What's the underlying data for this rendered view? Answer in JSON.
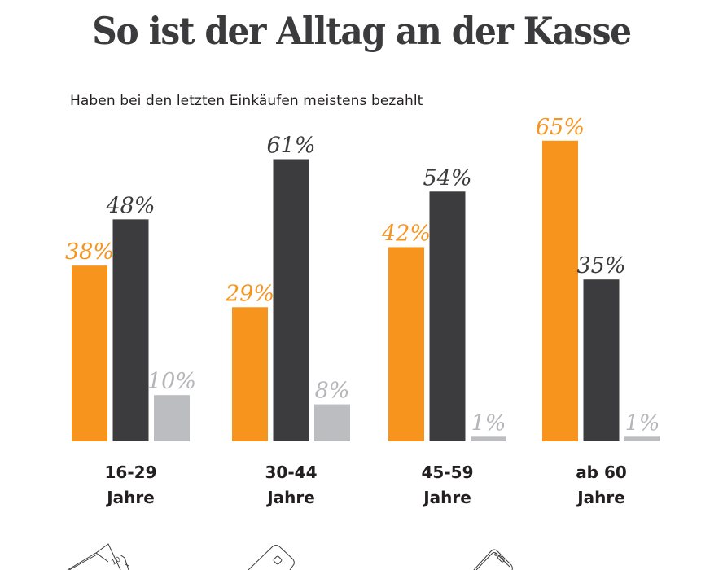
{
  "header": {
    "title": "So ist der Alltag an der Kasse",
    "subtitle": "Haben bei den letzten Einkäufen meistens bezahlt"
  },
  "colors": {
    "title": "#3b3b3d",
    "cash": "#F7941D",
    "card": "#3C3C3E",
    "mobile": "#BCBDC0",
    "mobile_label": "#B5B6BA",
    "category_text": "#231f20"
  },
  "icons": [
    {
      "name": "banknotes-icon",
      "denomination": "10"
    },
    {
      "name": "bank-card-icon"
    },
    {
      "name": "smartphone-icon"
    }
  ],
  "chart_data": {
    "type": "bar",
    "title": "So ist der Alltag an der Kasse",
    "subtitle": "Haben bei den letzten Einkäufen meistens bezahlt",
    "xlabel": "",
    "ylabel": "",
    "ylim": [
      0,
      70
    ],
    "grid": false,
    "categories": [
      {
        "line1": "16-29",
        "line2": "Jahre"
      },
      {
        "line1": "30-44",
        "line2": "Jahre"
      },
      {
        "line1": "45-59",
        "line2": "Jahre"
      },
      {
        "line1": "ab 60",
        "line2": "Jahre"
      }
    ],
    "series": [
      {
        "name": "Bargeld",
        "key": "cash",
        "values": [
          38,
          29,
          42,
          65
        ],
        "labels": [
          "38%",
          "29%",
          "42%",
          "65%"
        ]
      },
      {
        "name": "Karte",
        "key": "card",
        "values": [
          48,
          61,
          54,
          35
        ],
        "labels": [
          "48%",
          "61%",
          "54%",
          "35%"
        ]
      },
      {
        "name": "Smartphone",
        "key": "mobile",
        "values": [
          10,
          8,
          1,
          1
        ],
        "labels": [
          "10%",
          "8%",
          "1%",
          "1%"
        ]
      }
    ]
  }
}
